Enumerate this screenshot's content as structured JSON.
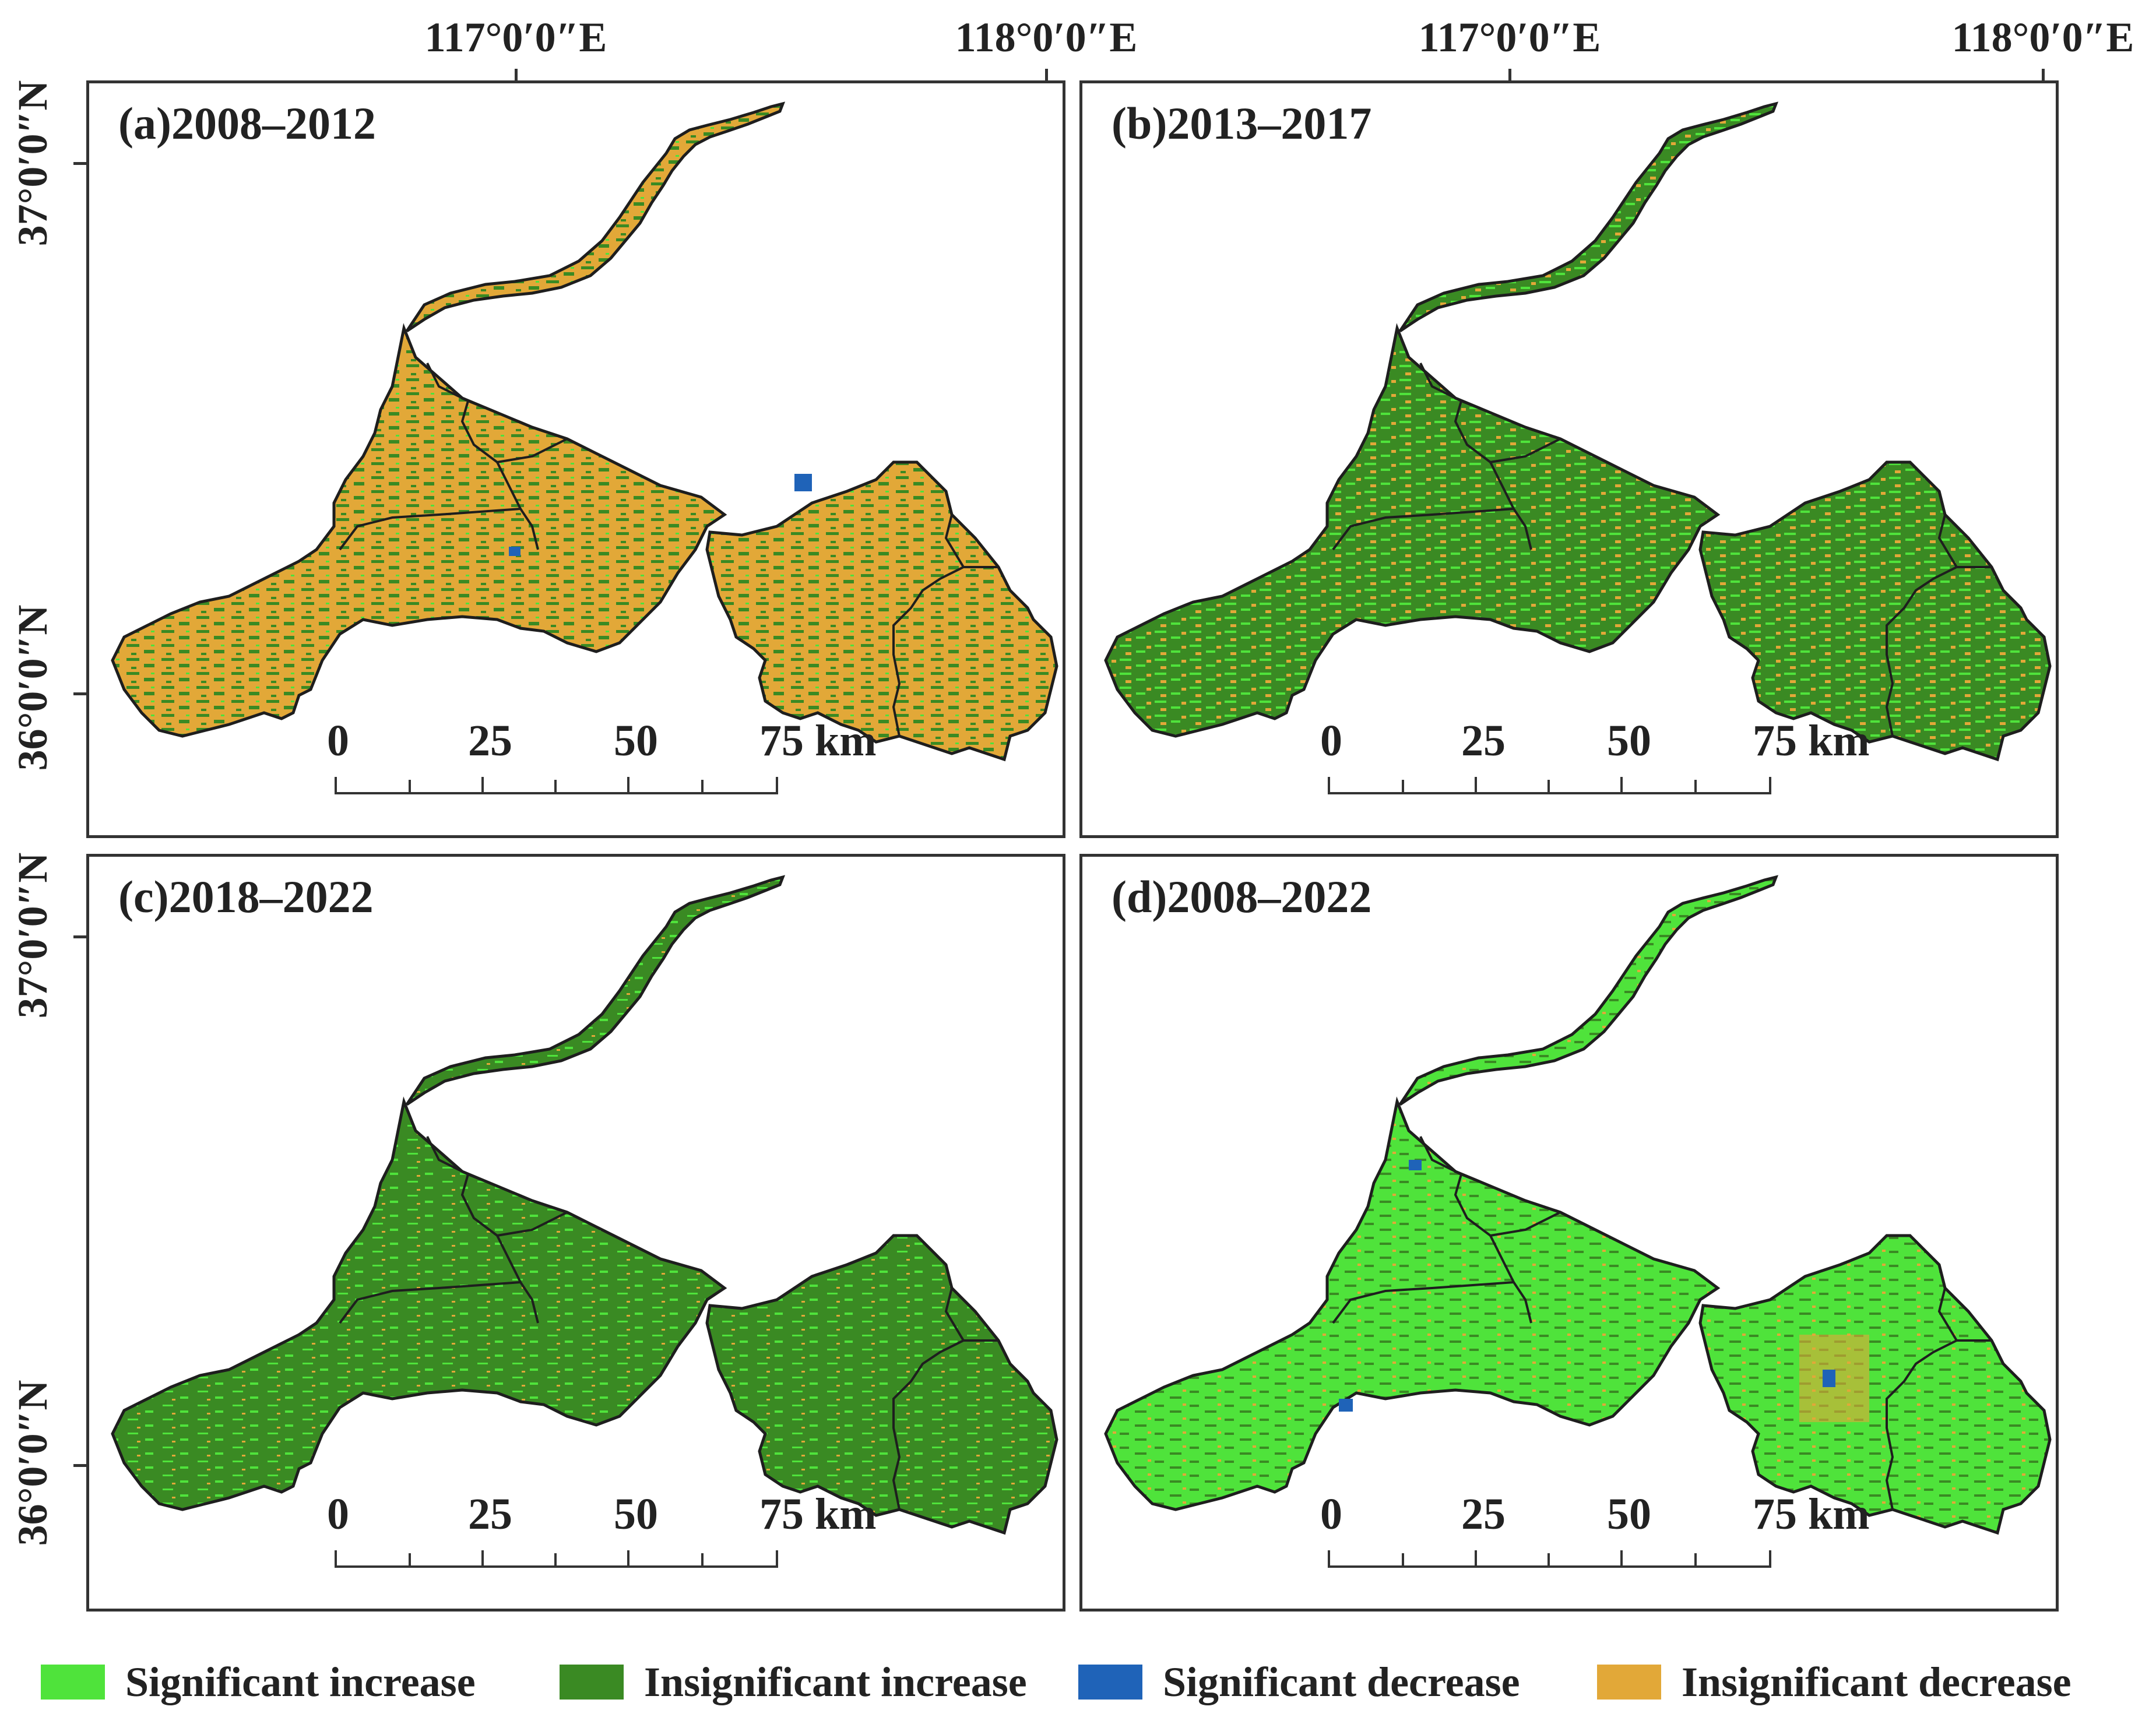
{
  "graticule": {
    "lon_labels": [
      "117°0′0″E",
      "118°0′0″E"
    ],
    "lat_labels": [
      "37°0′0″N",
      "36°0′0″N"
    ]
  },
  "panels": [
    {
      "title": "(a)2008–2012",
      "dominant": "Insignificant decrease"
    },
    {
      "title": "(b)2013–2017",
      "dominant": "Insignificant increase"
    },
    {
      "title": "(c)2018–2022",
      "dominant": "Insignificant increase"
    },
    {
      "title": "(d)2008–2022",
      "dominant": "Significant increase"
    }
  ],
  "scalebar": {
    "labels": [
      "0",
      "25",
      "50",
      "75 km"
    ]
  },
  "legend": [
    {
      "label": "Significant increase",
      "color": "#4fe33b"
    },
    {
      "label": "Insignificant increase",
      "color": "#3a8a23"
    },
    {
      "label": "Significant decrease",
      "color": "#1f63b8"
    },
    {
      "label": "Insignificant decrease",
      "color": "#e2a838"
    }
  ],
  "boundary_color": "#1e1e1e"
}
